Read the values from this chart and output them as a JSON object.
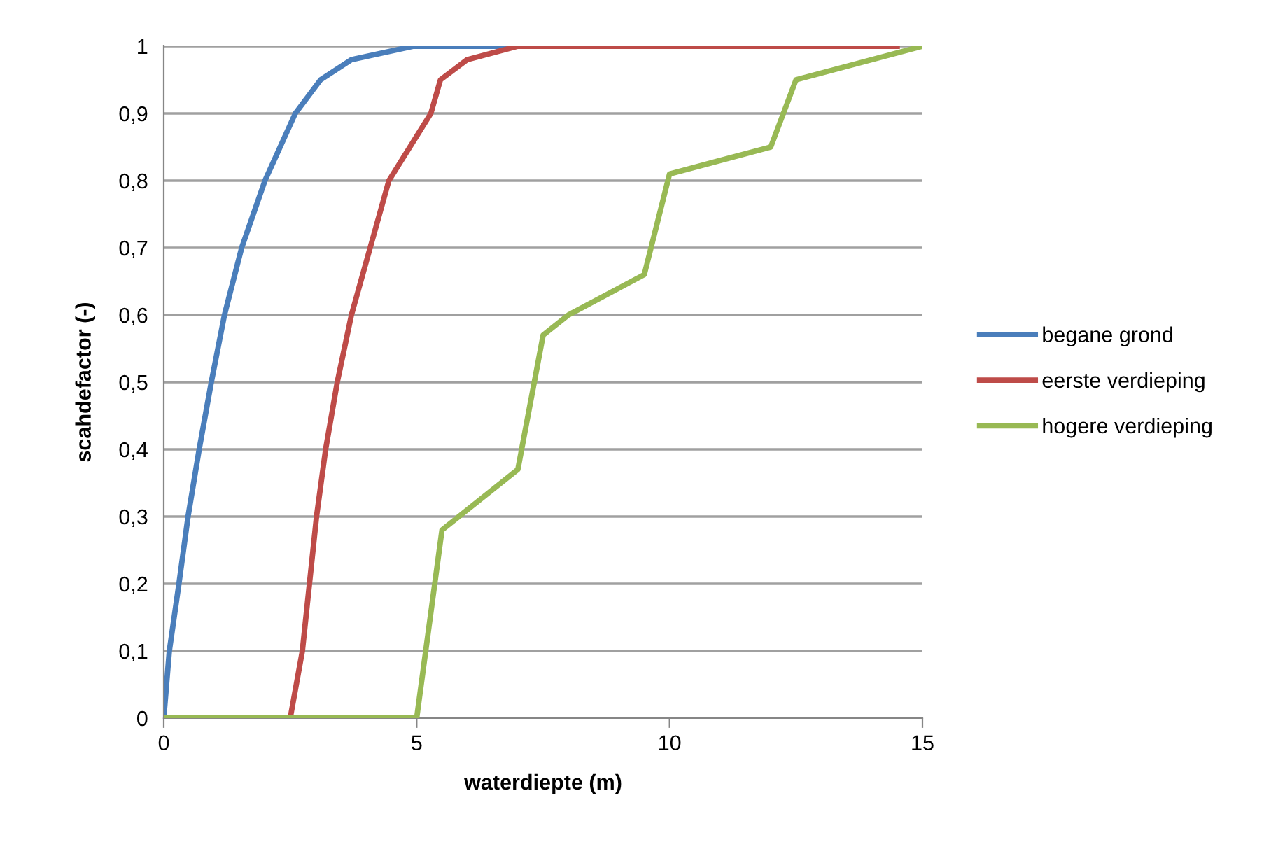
{
  "chart_data": {
    "type": "line",
    "xlabel": "waterdiepte (m)",
    "ylabel": "scahdefactor (-)",
    "xlim": [
      0,
      15
    ],
    "xticks": [
      0,
      5,
      10,
      15
    ],
    "ylim": [
      0,
      1
    ],
    "yticks": [
      {
        "value": 0,
        "label": "0"
      },
      {
        "value": 0.1,
        "label": "0,1"
      },
      {
        "value": 0.2,
        "label": "0,2"
      },
      {
        "value": 0.3,
        "label": "0,3"
      },
      {
        "value": 0.4,
        "label": "0,4"
      },
      {
        "value": 0.5,
        "label": "0,5"
      },
      {
        "value": 0.6,
        "label": "0,6"
      },
      {
        "value": 0.7,
        "label": "0,7"
      },
      {
        "value": 0.8,
        "label": "0,8"
      },
      {
        "value": 0.9,
        "label": "0,9"
      },
      {
        "value": 1,
        "label": "1"
      }
    ],
    "grid": "y",
    "legend": "right",
    "marker": "none",
    "line_style": "solid",
    "series": [
      {
        "name": "begane grond",
        "color": "#4a7ebb",
        "x": [
          0,
          0.11,
          0.3,
          0.48,
          0.7,
          0.94,
          1.2,
          1.54,
          2.0,
          2.6,
          3.1,
          3.71,
          4.94,
          6.9
        ],
        "values": [
          0,
          0.1,
          0.2,
          0.3,
          0.4,
          0.5,
          0.6,
          0.7,
          0.8,
          0.9,
          0.95,
          0.98,
          1,
          1
        ]
      },
      {
        "name": "eerste verdieping",
        "color": "#be4b48",
        "x": [
          0,
          2.5,
          2.74,
          2.88,
          3.02,
          3.2,
          3.43,
          3.71,
          4.08,
          4.45,
          5.28,
          5.47,
          6.0,
          7,
          14.5
        ],
        "values": [
          0,
          0,
          0.1,
          0.2,
          0.3,
          0.4,
          0.5,
          0.6,
          0.7,
          0.8,
          0.9,
          0.95,
          0.98,
          1,
          1
        ]
      },
      {
        "name": "hogere verdieping",
        "color": "#98b954",
        "x": [
          0,
          5,
          5.5,
          7,
          7.5,
          8,
          9.5,
          10,
          12,
          12.5,
          15
        ],
        "values": [
          0,
          0,
          0.28,
          0.37,
          0.57,
          0.6,
          0.66,
          0.81,
          0.85,
          0.95,
          1
        ]
      }
    ]
  }
}
